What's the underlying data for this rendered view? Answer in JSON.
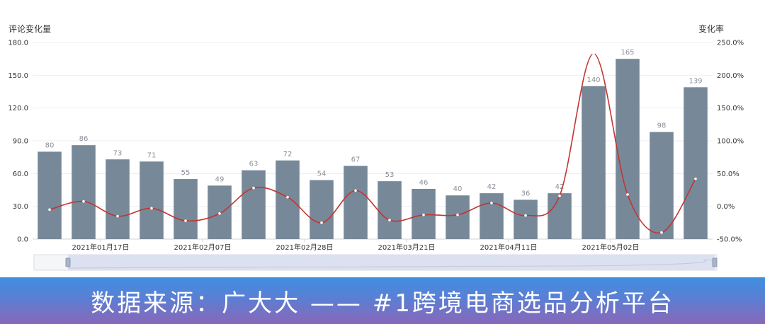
{
  "chart_data": {
    "type": "bar",
    "left_axis_title": "评论变化量",
    "right_axis_title": "变化率",
    "left_ticks": [
      "0.0",
      "30.0",
      "60.0",
      "90.0",
      "120.0",
      "150.0",
      "180.0"
    ],
    "right_ticks": [
      "-50.0%",
      "0.0%",
      "50.0%",
      "100.0%",
      "150.0%",
      "200.0%",
      "250.0%"
    ],
    "ylim_left": [
      0,
      180
    ],
    "ylim_right": [
      -50,
      250
    ],
    "x_tick_labels": [
      "2021年01月17日",
      "2021年02月07日",
      "2021年02月28日",
      "2021年03月21日",
      "2021年04月11日",
      "2021年05月02日"
    ],
    "series": [
      {
        "name": "评论变化量",
        "type": "bar",
        "color": "#778899",
        "values": [
          80,
          86,
          73,
          71,
          55,
          49,
          63,
          72,
          54,
          67,
          53,
          46,
          40,
          42,
          36,
          42,
          140,
          165,
          98,
          139
        ]
      },
      {
        "name": "变化率",
        "type": "line",
        "color": "#c23531",
        "values": [
          -5,
          7.5,
          -15,
          -3,
          -22,
          -11,
          28,
          14,
          -25,
          24,
          -21,
          -13,
          -13,
          5,
          -14,
          16,
          233,
          18,
          -40,
          42
        ]
      }
    ],
    "grid": true
  },
  "banner": {
    "text": "数据来源：广大大 —— #1跨境电商选品分析平台"
  }
}
